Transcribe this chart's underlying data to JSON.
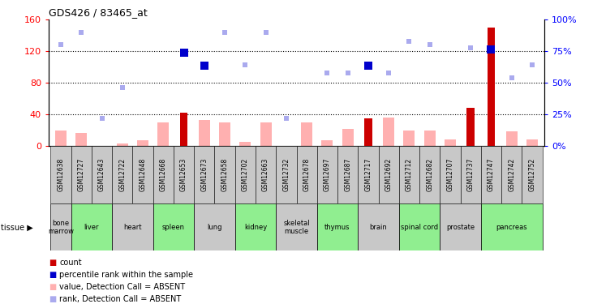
{
  "title": "GDS426 / 83465_at",
  "samples": [
    "GSM12638",
    "GSM12727",
    "GSM12643",
    "GSM12722",
    "GSM12648",
    "GSM12668",
    "GSM12653",
    "GSM12673",
    "GSM12658",
    "GSM12702",
    "GSM12663",
    "GSM12732",
    "GSM12678",
    "GSM12697",
    "GSM12687",
    "GSM12717",
    "GSM12692",
    "GSM12712",
    "GSM12682",
    "GSM12707",
    "GSM12737",
    "GSM12747",
    "GSM12742",
    "GSM12752"
  ],
  "red_bars": [
    0,
    0,
    0,
    0,
    0,
    0,
    42,
    0,
    0,
    0,
    0,
    0,
    0,
    0,
    0,
    35,
    0,
    0,
    0,
    0,
    48,
    150,
    0,
    0
  ],
  "pink_bars": [
    20,
    16,
    0,
    3,
    7,
    30,
    0,
    33,
    30,
    5,
    30,
    0,
    30,
    7,
    22,
    0,
    36,
    20,
    20,
    8,
    0,
    0,
    18,
    8
  ],
  "dark_blue_vals": [
    0,
    0,
    0,
    0,
    0,
    0,
    118,
    102,
    0,
    0,
    0,
    0,
    0,
    0,
    0,
    102,
    0,
    0,
    0,
    0,
    0,
    122,
    0,
    0
  ],
  "light_blue_vals": [
    80,
    90,
    22,
    46,
    0,
    0,
    0,
    0,
    90,
    64,
    90,
    22,
    0,
    58,
    58,
    0,
    58,
    83,
    80,
    0,
    78,
    0,
    54,
    64
  ],
  "tissues": [
    {
      "name": "bone\nmarrow",
      "start": 0,
      "end": 1,
      "color": "#c8c8c8"
    },
    {
      "name": "liver",
      "start": 1,
      "end": 3,
      "color": "#90ee90"
    },
    {
      "name": "heart",
      "start": 3,
      "end": 5,
      "color": "#c8c8c8"
    },
    {
      "name": "spleen",
      "start": 5,
      "end": 7,
      "color": "#90ee90"
    },
    {
      "name": "lung",
      "start": 7,
      "end": 9,
      "color": "#c8c8c8"
    },
    {
      "name": "kidney",
      "start": 9,
      "end": 11,
      "color": "#90ee90"
    },
    {
      "name": "skeletal\nmuscle",
      "start": 11,
      "end": 13,
      "color": "#c8c8c8"
    },
    {
      "name": "thymus",
      "start": 13,
      "end": 15,
      "color": "#90ee90"
    },
    {
      "name": "brain",
      "start": 15,
      "end": 17,
      "color": "#c8c8c8"
    },
    {
      "name": "spinal cord",
      "start": 17,
      "end": 19,
      "color": "#90ee90"
    },
    {
      "name": "prostate",
      "start": 19,
      "end": 21,
      "color": "#c8c8c8"
    },
    {
      "name": "pancreas",
      "start": 21,
      "end": 24,
      "color": "#90ee90"
    }
  ],
  "yticks_left": [
    0,
    40,
    80,
    120,
    160
  ],
  "yticks_right": [
    0,
    25,
    50,
    75,
    100
  ],
  "ytick_labels_right": [
    "0%",
    "25%",
    "50%",
    "75%",
    "100%"
  ],
  "red_color": "#cc0000",
  "pink_color": "#ffb0b0",
  "dark_blue_color": "#0000cc",
  "light_blue_color": "#aaaaee",
  "bg_color": "#ffffff",
  "sample_bg_color": "#c8c8c8"
}
